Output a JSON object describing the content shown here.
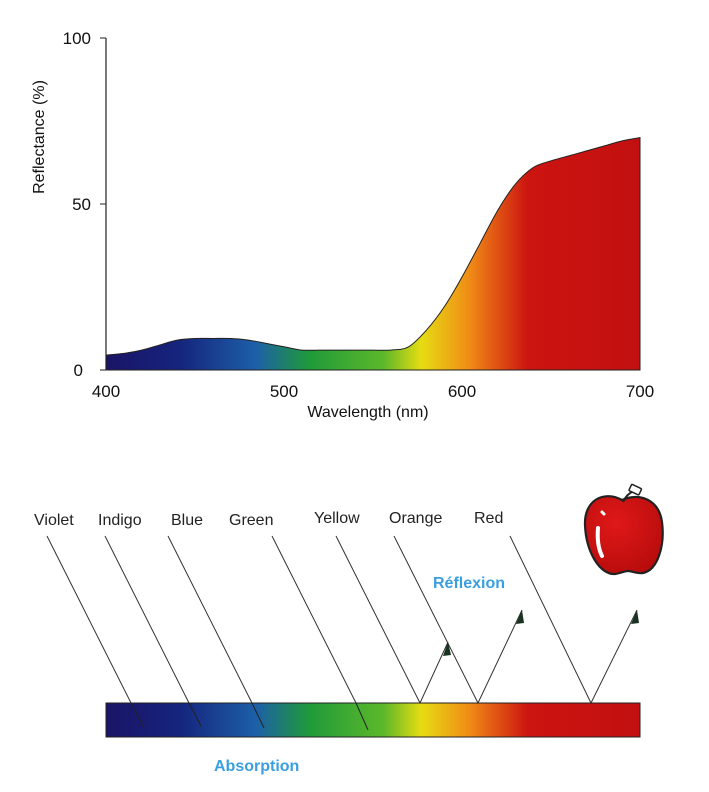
{
  "chart_data": {
    "type": "area",
    "xlabel": "Wavelength (nm)",
    "ylabel": "Reflectance (%)",
    "xlim": [
      400,
      700
    ],
    "ylim": [
      0,
      100
    ],
    "x_ticks": [
      "400",
      "500",
      "600",
      "700"
    ],
    "y_ticks": [
      "0",
      "50",
      "100"
    ],
    "grid": false,
    "x": [
      400,
      410,
      420,
      430,
      440,
      450,
      460,
      470,
      480,
      490,
      500,
      510,
      520,
      530,
      540,
      550,
      560,
      570,
      580,
      590,
      600,
      610,
      620,
      630,
      640,
      650,
      660,
      670,
      680,
      690,
      700
    ],
    "values": [
      4.5,
      5,
      6,
      7.5,
      9,
      9.5,
      9.5,
      9.5,
      9,
      8,
      7,
      6,
      6,
      6,
      6,
      6,
      6,
      7,
      12,
      19,
      28,
      38,
      48,
      56,
      61,
      63,
      64.5,
      66,
      67.5,
      69,
      70
    ]
  },
  "diagram": {
    "color_labels": [
      "Violet",
      "Indigo",
      "Blue",
      "Green",
      "Yellow",
      "Orange",
      "Red"
    ],
    "reflexion_label": "Réflexion",
    "absorption_label": "Absorption"
  },
  "colors": {
    "violet": "#1a1466",
    "indigo": "#15257e",
    "blue": "#1d5fa8",
    "green": "#1f9a3a",
    "yellow": "#e6dc12",
    "orange": "#f08c16",
    "red": "#cc1410",
    "accent_label": "#3a9fe0"
  }
}
